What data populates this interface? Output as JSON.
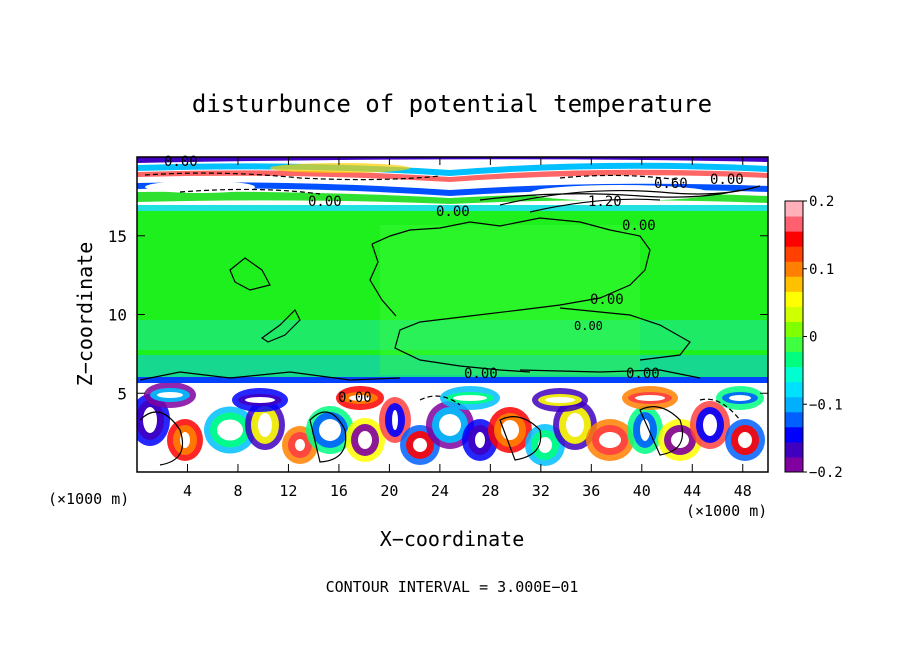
{
  "chart_data": {
    "type": "heatmap",
    "title": "disturbunce of potential temperature",
    "xlabel": "X−coordinate",
    "ylabel": "Z−coordinate",
    "x_unit_left": "(×1000 m)",
    "x_unit_right": "(×1000 m)",
    "xlim": [
      0,
      50
    ],
    "ylim": [
      0,
      20
    ],
    "x_ticks": [
      4,
      8,
      12,
      16,
      20,
      24,
      28,
      32,
      36,
      40,
      44,
      48
    ],
    "x_tick_labels": [
      "4",
      "8",
      "12",
      "16",
      "20",
      "24",
      "28",
      "32",
      "36",
      "40",
      "44",
      "48"
    ],
    "y_ticks": [
      5,
      10,
      15
    ],
    "y_tick_labels": [
      "5",
      "10",
      "15"
    ],
    "colorbar": {
      "min": -0.2,
      "max": 0.2,
      "tick_values": [
        0.2,
        0.1,
        0,
        -0.1,
        -0.2
      ],
      "tick_labels": [
        "0.2",
        "0.1",
        "0",
        "−0.1",
        "−0.2"
      ],
      "colors": [
        "#8000a0",
        "#4000c0",
        "#0000ff",
        "#0060ff",
        "#00b0ff",
        "#00e0ff",
        "#00ffd0",
        "#00ff80",
        "#40ff40",
        "#80ff00",
        "#d0ff00",
        "#ffff00",
        "#ffc000",
        "#ff8000",
        "#ff4000",
        "#ff0000",
        "#ff6070",
        "#ffb0b8"
      ]
    },
    "annotation": "CONTOUR INTERVAL = 3.000E−01",
    "contour_labels": [
      "0.00",
      "0.00",
      "0.00",
      "0.00",
      "0.00",
      "0.00",
      "0.00",
      "0.00",
      "0.00",
      "0.60",
      "1.20",
      "0.00"
    ],
    "bands": [
      {
        "z": [
          0,
          6
        ],
        "description": "strong mixed positive/negative disturbance"
      },
      {
        "z": [
          6,
          17
        ],
        "value": 0.01
      },
      {
        "z": [
          17,
          20
        ],
        "description": "stratified layer with closed contours"
      }
    ]
  }
}
